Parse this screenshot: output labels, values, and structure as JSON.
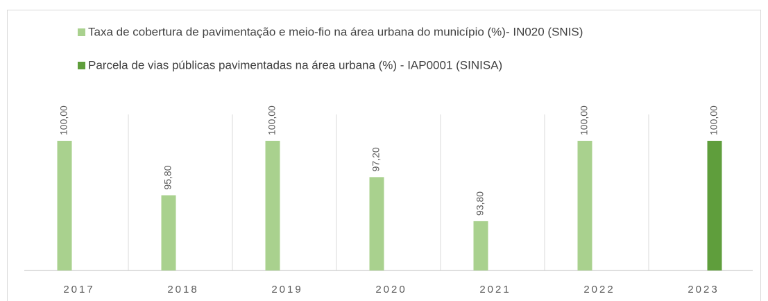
{
  "chart_data": {
    "type": "bar",
    "categories": [
      "2017",
      "2018",
      "2019",
      "2020",
      "2021",
      "2022",
      "2023"
    ],
    "series": [
      {
        "name": "Taxa de cobertura de pavimentação e meio-fio na área urbana do município (%)- IN020 (SNIS)",
        "color": "#a9d18e",
        "values": [
          100,
          95.8,
          100,
          97.2,
          93.8,
          100,
          null
        ],
        "value_labels": [
          "100,00",
          "95,80",
          "100,00",
          "97,20",
          "93,80",
          "100,00",
          null
        ]
      },
      {
        "name": "Parcela de vias públicas pavimentadas na área urbana (%) - IAP0001 (SINISA)",
        "color": "#5f9e3c",
        "values": [
          null,
          null,
          null,
          null,
          null,
          null,
          100
        ],
        "value_labels": [
          null,
          null,
          null,
          null,
          null,
          null,
          "100,00"
        ]
      }
    ],
    "ylim": [
      90,
      100
    ],
    "grid": true
  }
}
